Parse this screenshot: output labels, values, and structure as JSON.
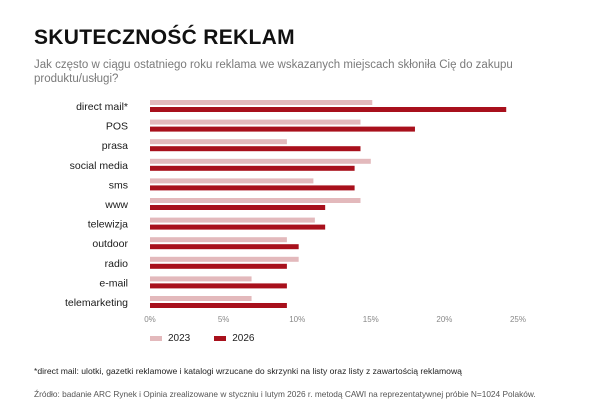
{
  "header": {
    "title": "SKUTECZNOŚĆ REKLAM",
    "subtitle": "Jak często w ciągu ostatniego roku reklama we wskazanych miejscach skłoniła Cię do zakupu produktu/usługi?"
  },
  "chart_data": {
    "type": "bar",
    "orientation": "horizontal",
    "categories": [
      "direct mail*",
      "POS",
      "prasa",
      "social media",
      "sms",
      "www",
      "telewizja",
      "outdoor",
      "radio",
      "e-mail",
      "telemarketing"
    ],
    "series": [
      {
        "name": "2023",
        "color": "#e3b9bc",
        "values": [
          15.1,
          14.3,
          9.3,
          15.0,
          11.1,
          14.3,
          11.2,
          9.3,
          10.1,
          6.9,
          6.9
        ]
      },
      {
        "name": "2026",
        "color": "#a8101c",
        "values": [
          24.2,
          18.0,
          14.3,
          13.9,
          13.9,
          11.9,
          11.9,
          10.1,
          9.3,
          9.3,
          9.3
        ]
      }
    ],
    "xticks": [
      "0%",
      "5%",
      "10%",
      "15%",
      "20%",
      "25%"
    ],
    "xlim": [
      0,
      25
    ],
    "grid": false,
    "legend_position": "bottom-left"
  },
  "footnote": "*direct mail: ulotki, gazetki reklamowe i katalogi wrzucane do skrzynki na listy oraz listy z zawartością reklamową",
  "source": "Źródło: badanie ARC Rynek i Opinia zrealizowane w styczniu i lutym 2026 r. metodą CAWI na reprezentatywnej próbie N=1024 Polaków."
}
